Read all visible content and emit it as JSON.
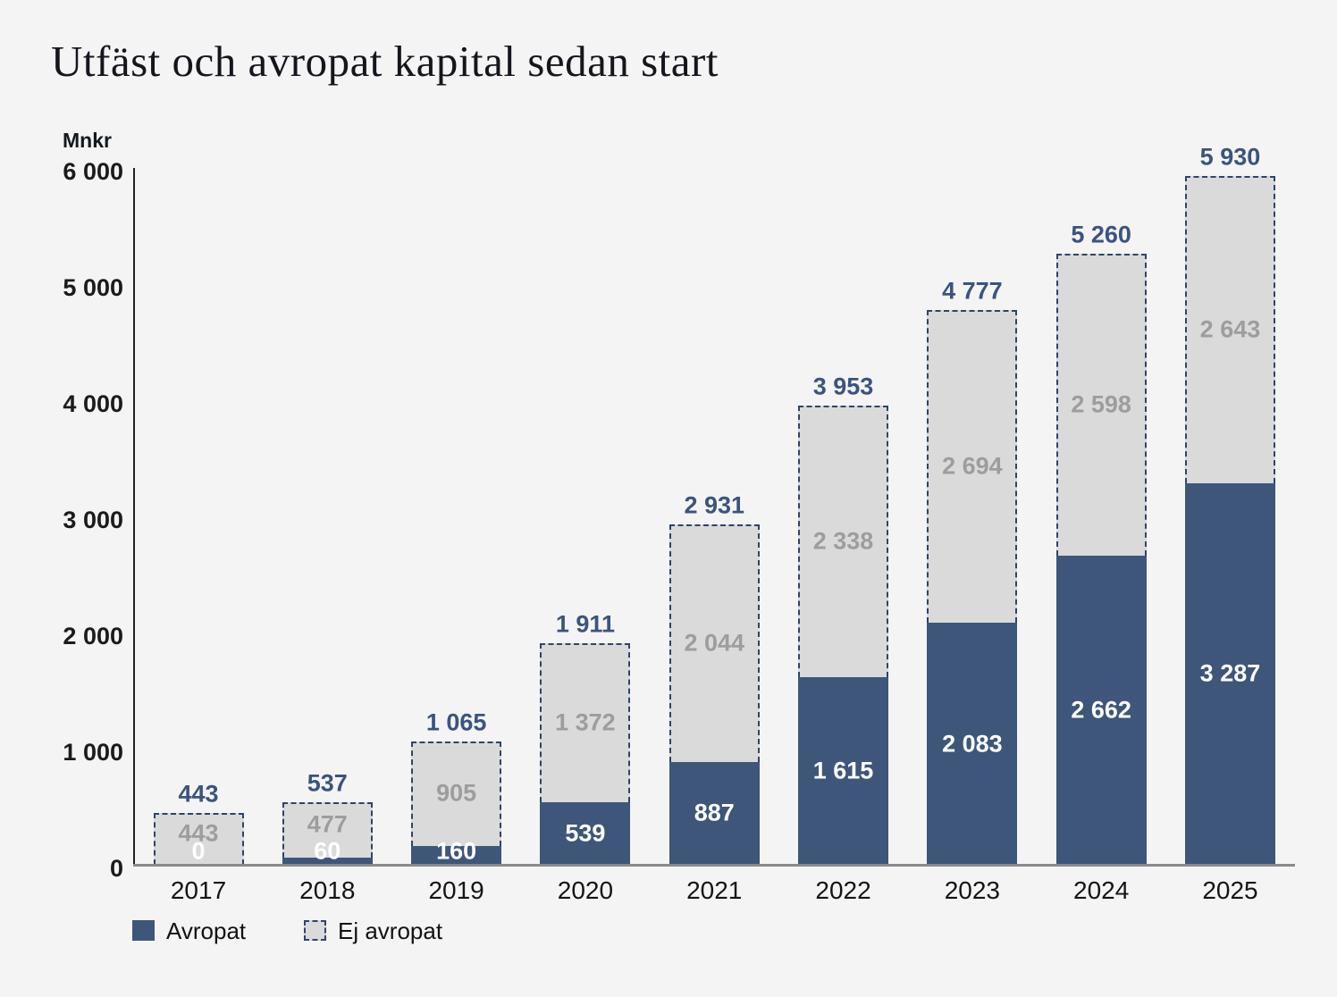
{
  "title": "Utfäst och avropat kapital sedan start",
  "axis": {
    "unit_label": "Mnkr",
    "y_ticks": [
      {
        "value": 0,
        "label": "0"
      },
      {
        "value": 1000,
        "label": "1 000"
      },
      {
        "value": 2000,
        "label": "2 000"
      },
      {
        "value": 3000,
        "label": "3 000"
      },
      {
        "value": 4000,
        "label": "4 000"
      },
      {
        "value": 5000,
        "label": "5 000"
      },
      {
        "value": 6000,
        "label": "6 000"
      }
    ]
  },
  "chart_data": {
    "type": "bar",
    "stacked": true,
    "title": "Utfäst och avropat kapital sedan start",
    "ylabel": "Mnkr",
    "ylim": [
      0,
      6000
    ],
    "grid": false,
    "legend_position": "bottom-left",
    "categories": [
      "2017",
      "2018",
      "2019",
      "2020",
      "2021",
      "2022",
      "2023",
      "2024",
      "2025"
    ],
    "series": [
      {
        "name": "Avropat",
        "color": "#3d5679",
        "values": [
          0,
          60,
          160,
          539,
          887,
          1615,
          2083,
          2662,
          3287
        ],
        "labels": [
          "0",
          "60",
          "160",
          "539",
          "887",
          "1 615",
          "2 083",
          "2 662",
          "3 287"
        ]
      },
      {
        "name": "Ej avropat",
        "color": "#dadada",
        "border_color": "#2e4469",
        "values": [
          443,
          477,
          905,
          1372,
          2044,
          2338,
          2694,
          2598,
          2643
        ],
        "labels": [
          "443",
          "477",
          "905",
          "1 372",
          "2 044",
          "2 338",
          "2 694",
          "2 598",
          "2 643"
        ]
      }
    ],
    "totals": [
      443,
      537,
      1065,
      1911,
      2931,
      3953,
      4777,
      5260,
      5930
    ],
    "total_labels": [
      "443",
      "537",
      "1 065",
      "1 911",
      "2 931",
      "3 953",
      "4 777",
      "5 260",
      "5 930"
    ]
  },
  "legend": {
    "items": [
      {
        "label": "Avropat",
        "style": "solid-blue"
      },
      {
        "label": "Ej avropat",
        "style": "dashed-gray"
      }
    ]
  },
  "colors": {
    "avropat_fill": "#3d5679",
    "ej_avropat_fill": "#dadada",
    "dash_border": "#2e4469",
    "total_label": "#3a547f",
    "gray_label": "#9d9d9d",
    "white_label": "#ffffff",
    "background": "#f4f4f4"
  }
}
